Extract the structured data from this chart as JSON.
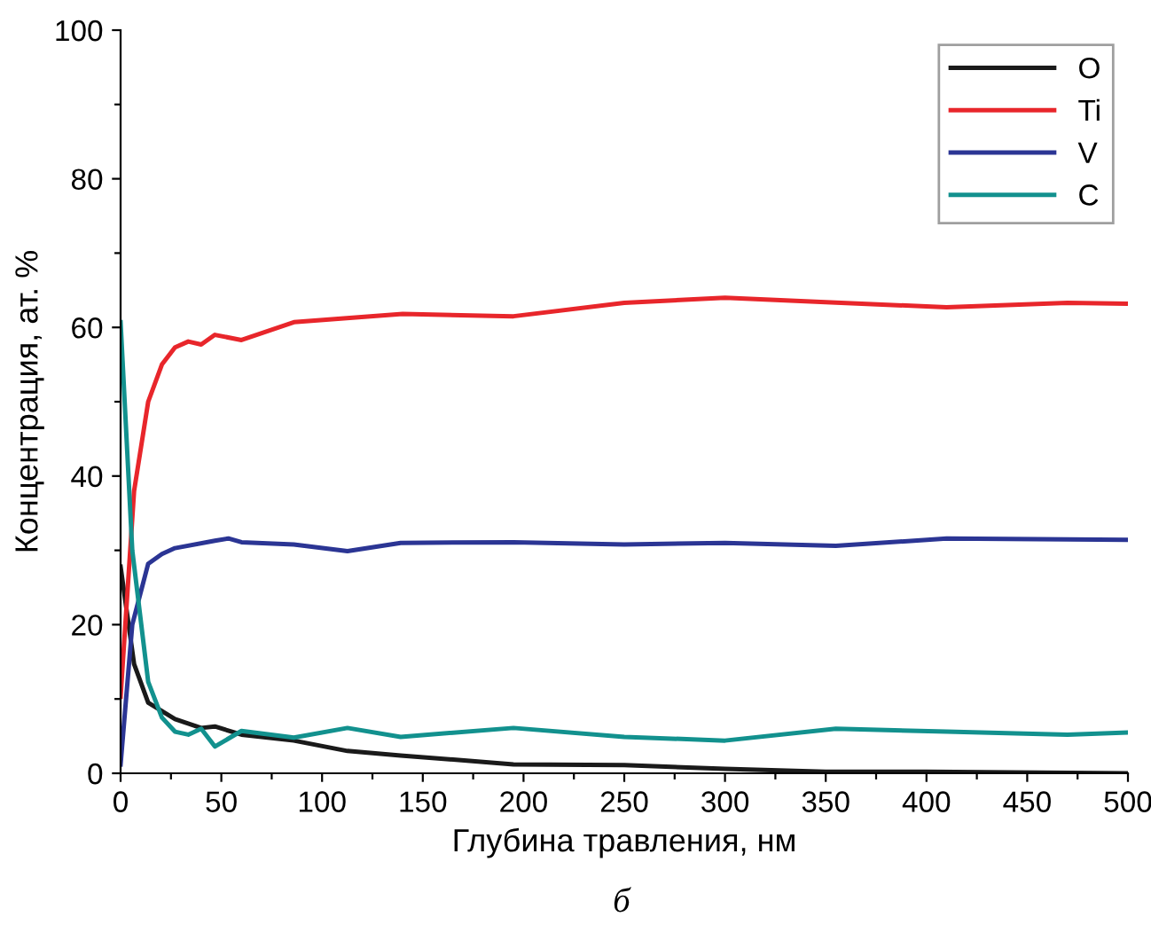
{
  "chart_data": {
    "type": "line",
    "xlabel": "Глубина травления, нм",
    "ylabel": "Концентрация, ат. %",
    "annotations": [
      "б"
    ],
    "xlim": [
      0,
      500
    ],
    "ylim": [
      0,
      100
    ],
    "xticks": [
      0,
      {
        "value": 25,
        "label": null
      },
      50,
      {
        "value": 75,
        "label": null
      },
      100,
      {
        "value": 125,
        "label": null
      },
      150,
      {
        "value": 175,
        "label": null
      },
      200,
      {
        "value": 225,
        "label": null
      },
      250,
      {
        "value": 275,
        "label": null
      },
      300,
      {
        "value": 325,
        "label": null
      },
      350,
      {
        "value": 375,
        "label": null
      },
      400,
      {
        "value": 425,
        "label": null
      },
      450,
      {
        "value": 475,
        "label": null
      },
      500
    ],
    "yticks": [
      0,
      {
        "value": 10,
        "label": null
      },
      20,
      {
        "value": 30,
        "label": null
      },
      40,
      {
        "value": 50,
        "label": null
      },
      60,
      {
        "value": 70,
        "label": null
      },
      80,
      {
        "value": 90,
        "label": null
      },
      100
    ],
    "legend": "top right",
    "grid": false,
    "marker": "none",
    "line_style": "solid",
    "series": [
      {
        "name": "O",
        "color": "#1a1a1a",
        "x": [
          0,
          6.7,
          13.7,
          27,
          40,
          46.8,
          60,
          86,
          112.6,
          139,
          195,
          250,
          300,
          350,
          400,
          500
        ],
        "values": [
          27.8,
          14.7,
          9.5,
          7.3,
          6.1,
          6.3,
          5.2,
          4.4,
          3,
          2.4,
          1.2,
          1.1,
          0.6,
          0.2,
          0.2,
          0
        ]
      },
      {
        "name": "Ti",
        "color": "#e8262b",
        "x": [
          0,
          6.7,
          13.7,
          20.5,
          27,
          33.6,
          40,
          46.8,
          60,
          86,
          140,
          195,
          250,
          300,
          350,
          410,
          470,
          500
        ],
        "values": [
          10.3,
          38,
          50,
          55,
          57.3,
          58.1,
          57.7,
          59,
          58.3,
          60.7,
          61.8,
          61.5,
          63.3,
          64,
          63.4,
          62.7,
          63.3,
          63.2
        ]
      },
      {
        "name": "V",
        "color": "#2b3594",
        "x": [
          0,
          5.8,
          13.7,
          20.5,
          27,
          46.8,
          53.5,
          60,
          86,
          112.6,
          139,
          195,
          250,
          300,
          355,
          410,
          500
        ],
        "values": [
          1.2,
          20,
          28.2,
          29.5,
          30.3,
          31.3,
          31.6,
          31.1,
          30.8,
          29.9,
          31,
          31.1,
          30.8,
          31,
          30.6,
          31.6,
          31.4
        ]
      },
      {
        "name": "C",
        "color": "#12918e",
        "x": [
          0,
          5.8,
          13.7,
          20.5,
          27,
          33.6,
          40,
          46.8,
          60,
          86,
          112.6,
          139,
          195,
          250,
          300,
          355,
          410,
          470,
          500
        ],
        "values": [
          60.7,
          30,
          12.3,
          7.5,
          5.6,
          5.2,
          6,
          3.6,
          5.7,
          4.8,
          6.1,
          4.9,
          6.1,
          4.9,
          4.4,
          6,
          5.6,
          5.2,
          5.5
        ]
      }
    ]
  }
}
